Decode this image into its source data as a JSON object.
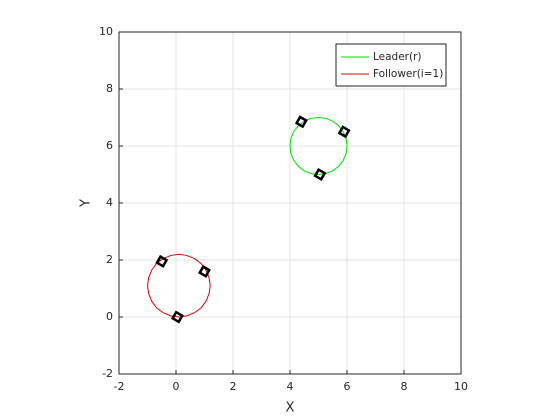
{
  "chart_data": {
    "type": "line",
    "xlabel": "X",
    "ylabel": "Y",
    "xlim": [
      -2,
      10
    ],
    "ylim": [
      -2,
      10
    ],
    "xticks": [
      -2,
      0,
      2,
      4,
      6,
      8,
      10
    ],
    "yticks": [
      -2,
      0,
      2,
      4,
      6,
      8,
      10
    ],
    "grid": true,
    "legend_position": "top-right",
    "series": [
      {
        "name": "Leader(r)",
        "color": "#00e000",
        "x": [
          6,
          5.97,
          5.87,
          5.71,
          5.5,
          5.26,
          5,
          4.74,
          4.5,
          4.29,
          4.13,
          4.03,
          4,
          4.03,
          4.13,
          4.29,
          4.5,
          4.74,
          5,
          5.26,
          5.5,
          5.71,
          5.87,
          5.97,
          6
        ],
        "values": [
          6,
          6.26,
          6.5,
          6.71,
          6.87,
          6.97,
          7,
          6.97,
          6.87,
          6.71,
          6.5,
          6.26,
          6,
          5.74,
          5.5,
          5.29,
          5.13,
          5.03,
          5,
          5.03,
          5.13,
          5.29,
          5.5,
          5.74,
          6
        ]
      },
      {
        "name": "Follower(i=1)",
        "color": "#e00000",
        "x": [
          1.2,
          1.16,
          1.05,
          0.88,
          0.65,
          0.38,
          0.1,
          -0.18,
          -0.45,
          -0.68,
          -0.85,
          -0.96,
          -1.0,
          -0.96,
          -0.85,
          -0.68,
          -0.45,
          -0.18,
          0.1,
          0.38,
          0.65,
          0.88,
          1.05,
          1.16,
          1.2
        ],
        "values": [
          1.1,
          1.38,
          1.65,
          1.88,
          2.05,
          2.16,
          2.2,
          2.16,
          2.05,
          1.88,
          1.65,
          1.38,
          1.1,
          0.82,
          0.55,
          0.32,
          0.15,
          0.04,
          0.0,
          0.04,
          0.15,
          0.32,
          0.55,
          0.82,
          1.1
        ]
      },
      {
        "type": "scatter",
        "color": "#000000",
        "x": [
          4.4,
          5.9,
          5.05,
          -0.5,
          1.0,
          0.05
        ],
        "values": [
          6.85,
          6.5,
          5.0,
          1.95,
          1.6,
          0.0
        ]
      }
    ]
  }
}
